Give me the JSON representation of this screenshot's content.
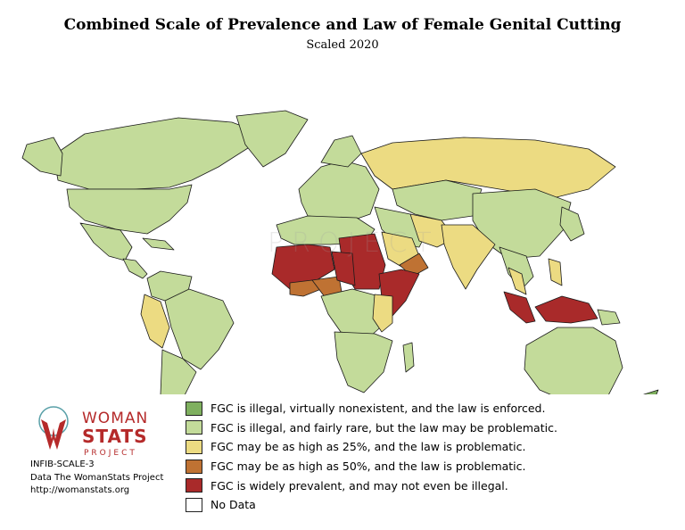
{
  "title": "Combined Scale of Prevalence and Law of Female Genital Cutting",
  "subtitle": "Scaled 2020",
  "colors": {
    "ocean": "#ffffff",
    "border": "#1a1a1a",
    "level1": "#7fb05f",
    "level2": "#c3db9a",
    "level3": "#ecdb82",
    "level4": "#bf7233",
    "level5": "#a92a2a",
    "nodata": "#ffffff"
  },
  "legend": [
    {
      "color": "#7fb05f",
      "label": "FGC is illegal, virtually nonexistent, and the law is enforced."
    },
    {
      "color": "#c3db9a",
      "label": "FGC is illegal, and fairly rare, but the law may be problematic."
    },
    {
      "color": "#ecdb82",
      "label": "FGC may be as high as 25%, and the law is problematic."
    },
    {
      "color": "#bf7233",
      "label": "FGC may be as high as 50%, and the law is problematic."
    },
    {
      "color": "#a92a2a",
      "label": "FGC is widely prevalent, and may not even be illegal."
    },
    {
      "color": "#ffffff",
      "label": "No Data"
    }
  ],
  "logo": {
    "line1": "WOMAN",
    "line2": "STATS",
    "line3": "PROJECT",
    "red": "#b52a2a",
    "teal": "#5aa0a8"
  },
  "credits": {
    "code": "INFIB-SCALE-3",
    "source": "Data The WomanStats Project",
    "url": "http://womanstats.org"
  },
  "watermark": "PROJECT",
  "regions": [
    {
      "name": "canada",
      "level": "level2",
      "pts": [
        [
          60,
          112
        ],
        [
          95,
          88
        ],
        [
          140,
          80
        ],
        [
          200,
          70
        ],
        [
          260,
          75
        ],
        [
          300,
          90
        ],
        [
          245,
          125
        ],
        [
          215,
          140
        ],
        [
          190,
          148
        ],
        [
          150,
          150
        ],
        [
          100,
          150
        ],
        [
          65,
          140
        ]
      ]
    },
    {
      "name": "alaska",
      "level": "level2",
      "pts": [
        [
          30,
          100
        ],
        [
          60,
          92
        ],
        [
          70,
          110
        ],
        [
          68,
          135
        ],
        [
          45,
          130
        ],
        [
          25,
          115
        ]
      ]
    },
    {
      "name": "greenland",
      "level": "level2",
      "pts": [
        [
          265,
          68
        ],
        [
          320,
          62
        ],
        [
          345,
          72
        ],
        [
          320,
          110
        ],
        [
          295,
          125
        ],
        [
          275,
          100
        ]
      ]
    },
    {
      "name": "usa",
      "level": "level2",
      "pts": [
        [
          75,
          150
        ],
        [
          190,
          150
        ],
        [
          215,
          145
        ],
        [
          210,
          165
        ],
        [
          190,
          185
        ],
        [
          165,
          200
        ],
        [
          130,
          195
        ],
        [
          95,
          185
        ],
        [
          78,
          170
        ]
      ]
    },
    {
      "name": "mexico",
      "level": "level2",
      "pts": [
        [
          90,
          188
        ],
        [
          135,
          196
        ],
        [
          148,
          215
        ],
        [
          140,
          230
        ],
        [
          122,
          225
        ],
        [
          105,
          210
        ]
      ]
    },
    {
      "name": "central-america",
      "level": "level2",
      "pts": [
        [
          138,
          228
        ],
        [
          152,
          230
        ],
        [
          165,
          245
        ],
        [
          160,
          250
        ],
        [
          145,
          242
        ]
      ]
    },
    {
      "name": "caribbean",
      "level": "level2",
      "pts": [
        [
          160,
          205
        ],
        [
          185,
          208
        ],
        [
          195,
          218
        ],
        [
          170,
          215
        ]
      ]
    },
    {
      "name": "colombia-venezuela",
      "level": "level2",
      "pts": [
        [
          165,
          250
        ],
        [
          180,
          242
        ],
        [
          215,
          248
        ],
        [
          210,
          268
        ],
        [
          185,
          275
        ],
        [
          170,
          270
        ]
      ]
    },
    {
      "name": "peru-ecuador",
      "level": "level3",
      "pts": [
        [
          162,
          268
        ],
        [
          180,
          276
        ],
        [
          190,
          305
        ],
        [
          182,
          328
        ],
        [
          168,
          318
        ],
        [
          158,
          290
        ]
      ]
    },
    {
      "name": "brazil",
      "level": "level2",
      "pts": [
        [
          185,
          275
        ],
        [
          212,
          262
        ],
        [
          250,
          275
        ],
        [
          262,
          300
        ],
        [
          245,
          330
        ],
        [
          225,
          352
        ],
        [
          205,
          340
        ],
        [
          192,
          305
        ]
      ]
    },
    {
      "name": "southern-cone",
      "level": "level2",
      "pts": [
        [
          182,
          330
        ],
        [
          205,
          340
        ],
        [
          220,
          355
        ],
        [
          205,
          385
        ],
        [
          195,
          410
        ],
        [
          185,
          418
        ],
        [
          180,
          380
        ]
      ]
    },
    {
      "name": "europe",
      "level": "level2",
      "pts": [
        [
          335,
          150
        ],
        [
          360,
          125
        ],
        [
          385,
          118
        ],
        [
          410,
          125
        ],
        [
          425,
          150
        ],
        [
          415,
          178
        ],
        [
          395,
          185
        ],
        [
          370,
          182
        ],
        [
          345,
          180
        ],
        [
          338,
          165
        ]
      ]
    },
    {
      "name": "scandinavia",
      "level": "level2",
      "pts": [
        [
          360,
          120
        ],
        [
          375,
          95
        ],
        [
          395,
          90
        ],
        [
          405,
          110
        ],
        [
          390,
          125
        ]
      ]
    },
    {
      "name": "russia",
      "level": "level3",
      "pts": [
        [
          405,
          110
        ],
        [
          440,
          98
        ],
        [
          520,
          92
        ],
        [
          600,
          95
        ],
        [
          660,
          105
        ],
        [
          690,
          125
        ],
        [
          660,
          150
        ],
        [
          620,
          160
        ],
        [
          560,
          150
        ],
        [
          500,
          140
        ],
        [
          440,
          150
        ],
        [
          420,
          135
        ]
      ]
    },
    {
      "name": "kazakhstan-central-asia",
      "level": "level2",
      "pts": [
        [
          440,
          150
        ],
        [
          500,
          140
        ],
        [
          540,
          150
        ],
        [
          530,
          180
        ],
        [
          495,
          185
        ],
        [
          465,
          178
        ],
        [
          445,
          168
        ]
      ]
    },
    {
      "name": "china-mongolia",
      "level": "level2",
      "pts": [
        [
          530,
          155
        ],
        [
          600,
          150
        ],
        [
          640,
          165
        ],
        [
          632,
          195
        ],
        [
          605,
          225
        ],
        [
          570,
          228
        ],
        [
          545,
          210
        ],
        [
          530,
          185
        ]
      ]
    },
    {
      "name": "middle-east",
      "level": "level2",
      "pts": [
        [
          420,
          170
        ],
        [
          460,
          178
        ],
        [
          480,
          195
        ],
        [
          470,
          215
        ],
        [
          445,
          212
        ],
        [
          428,
          195
        ]
      ]
    },
    {
      "name": "iran-afghanistan",
      "level": "level3",
      "pts": [
        [
          460,
          178
        ],
        [
          495,
          185
        ],
        [
          510,
          205
        ],
        [
          490,
          215
        ],
        [
          470,
          208
        ]
      ]
    },
    {
      "name": "saudi-arabia",
      "level": "level3",
      "pts": [
        [
          428,
          198
        ],
        [
          462,
          205
        ],
        [
          470,
          225
        ],
        [
          452,
          238
        ],
        [
          435,
          228
        ]
      ]
    },
    {
      "name": "yemen-oman",
      "level": "level4",
      "pts": [
        [
          448,
          235
        ],
        [
          470,
          222
        ],
        [
          480,
          238
        ],
        [
          462,
          248
        ]
      ]
    },
    {
      "name": "india-pakistan",
      "level": "level3",
      "pts": [
        [
          495,
          190
        ],
        [
          530,
          190
        ],
        [
          555,
          212
        ],
        [
          535,
          240
        ],
        [
          522,
          262
        ],
        [
          508,
          238
        ],
        [
          498,
          212
        ]
      ]
    },
    {
      "name": "southeast-asia",
      "level": "level2",
      "pts": [
        [
          560,
          215
        ],
        [
          590,
          225
        ],
        [
          598,
          248
        ],
        [
          585,
          262
        ],
        [
          570,
          245
        ]
      ]
    },
    {
      "name": "malaysia-thailand",
      "level": "level3",
      "pts": [
        [
          570,
          238
        ],
        [
          585,
          245
        ],
        [
          590,
          268
        ],
        [
          578,
          262
        ]
      ]
    },
    {
      "name": "japan-korea",
      "level": "level2",
      "pts": [
        [
          630,
          170
        ],
        [
          648,
          178
        ],
        [
          655,
          200
        ],
        [
          640,
          208
        ],
        [
          628,
          190
        ]
      ]
    },
    {
      "name": "philippines",
      "level": "level3",
      "pts": [
        [
          615,
          228
        ],
        [
          628,
          232
        ],
        [
          630,
          258
        ],
        [
          618,
          252
        ]
      ]
    },
    {
      "name": "indonesia-west",
      "level": "level5",
      "pts": [
        [
          565,
          265
        ],
        [
          590,
          272
        ],
        [
          600,
          298
        ],
        [
          590,
          300
        ],
        [
          572,
          285
        ]
      ]
    },
    {
      "name": "indonesia-east",
      "level": "level5",
      "pts": [
        [
          600,
          282
        ],
        [
          630,
          270
        ],
        [
          660,
          278
        ],
        [
          670,
          295
        ],
        [
          640,
          300
        ],
        [
          612,
          298
        ]
      ]
    },
    {
      "name": "papua-new-guinea",
      "level": "level2",
      "pts": [
        [
          670,
          285
        ],
        [
          690,
          288
        ],
        [
          695,
          300
        ],
        [
          675,
          302
        ]
      ]
    },
    {
      "name": "australia",
      "level": "level2",
      "pts": [
        [
          590,
          325
        ],
        [
          625,
          305
        ],
        [
          665,
          305
        ],
        [
          690,
          320
        ],
        [
          698,
          350
        ],
        [
          680,
          385
        ],
        [
          640,
          390
        ],
        [
          605,
          375
        ],
        [
          588,
          352
        ]
      ]
    },
    {
      "name": "new-zealand",
      "level": "level1",
      "pts": [
        [
          700,
          395
        ],
        [
          722,
          380
        ],
        [
          738,
          375
        ],
        [
          730,
          395
        ],
        [
          705,
          405
        ]
      ]
    },
    {
      "name": "north-africa",
      "level": "level2",
      "pts": [
        [
          310,
          190
        ],
        [
          345,
          180
        ],
        [
          400,
          182
        ],
        [
          420,
          195
        ],
        [
          410,
          210
        ],
        [
          370,
          212
        ],
        [
          330,
          212
        ],
        [
          315,
          205
        ]
      ]
    },
    {
      "name": "west-africa-sahel",
      "level": "level5",
      "pts": [
        [
          310,
          215
        ],
        [
          345,
          212
        ],
        [
          370,
          215
        ],
        [
          375,
          240
        ],
        [
          350,
          255
        ],
        [
          325,
          262
        ],
        [
          305,
          245
        ]
      ]
    },
    {
      "name": "west-africa-coast",
      "level": "level4",
      "pts": [
        [
          325,
          255
        ],
        [
          350,
          252
        ],
        [
          360,
          262
        ],
        [
          340,
          270
        ],
        [
          325,
          268
        ]
      ]
    },
    {
      "name": "nigeria",
      "level": "level4",
      "pts": [
        [
          350,
          252
        ],
        [
          380,
          248
        ],
        [
          383,
          265
        ],
        [
          365,
          272
        ]
      ]
    },
    {
      "name": "egypt-sudan",
      "level": "level5",
      "pts": [
        [
          380,
          205
        ],
        [
          420,
          200
        ],
        [
          432,
          235
        ],
        [
          425,
          262
        ],
        [
          398,
          262
        ],
        [
          385,
          240
        ]
      ]
    },
    {
      "name": "chad",
      "level": "level5",
      "pts": [
        [
          372,
          220
        ],
        [
          395,
          222
        ],
        [
          398,
          258
        ],
        [
          378,
          252
        ]
      ]
    },
    {
      "name": "horn-of-africa",
      "level": "level5",
      "pts": [
        [
          425,
          245
        ],
        [
          450,
          240
        ],
        [
          470,
          245
        ],
        [
          455,
          275
        ],
        [
          440,
          292
        ],
        [
          428,
          272
        ]
      ]
    },
    {
      "name": "central-africa",
      "level": "level2",
      "pts": [
        [
          360,
          270
        ],
        [
          395,
          262
        ],
        [
          425,
          270
        ],
        [
          432,
          300
        ],
        [
          415,
          315
        ],
        [
          382,
          310
        ],
        [
          368,
          290
        ]
      ]
    },
    {
      "name": "east-africa",
      "level": "level3",
      "pts": [
        [
          420,
          268
        ],
        [
          440,
          270
        ],
        [
          440,
          300
        ],
        [
          428,
          310
        ],
        [
          418,
          295
        ]
      ]
    },
    {
      "name": "southern-africa",
      "level": "level2",
      "pts": [
        [
          375,
          310
        ],
        [
          420,
          312
        ],
        [
          440,
          320
        ],
        [
          430,
          355
        ],
        [
          408,
          378
        ],
        [
          390,
          370
        ],
        [
          378,
          340
        ]
      ]
    },
    {
      "name": "madagascar",
      "level": "level2",
      "pts": [
        [
          452,
          325
        ],
        [
          462,
          322
        ],
        [
          464,
          348
        ],
        [
          455,
          355
        ]
      ]
    }
  ]
}
